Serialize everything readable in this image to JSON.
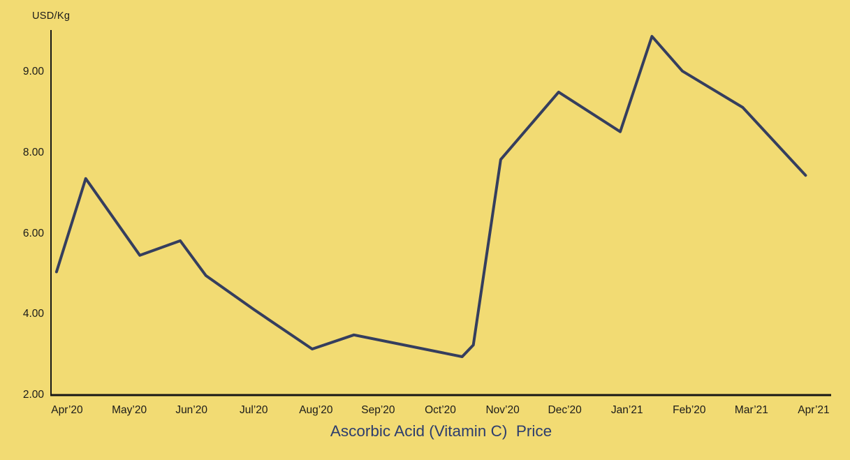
{
  "colors": {
    "background": "#F2DB73",
    "line": "#353E5E",
    "axis": "#161616",
    "tick_text": "#1A1A1A",
    "title_text": "#2C3D6E"
  },
  "chart_data": {
    "type": "line",
    "title": "Ascorbic Acid (Vitamin C)  Price",
    "ylabel": "USD/Kg",
    "xlabel": "",
    "grid": false,
    "legend": false,
    "x_tick_labels": [
      "Apr’20",
      "May’20",
      "Jun’20",
      "Jul’20",
      "Aug’20",
      "Sep’20",
      "Oct’20",
      "Nov’20",
      "Dec’20",
      "Jan’21",
      "Feb’20",
      "Mar’21",
      "Apr’21"
    ],
    "y_tick_labels": [
      "9.00",
      "8.00",
      "6.00",
      "4.00",
      "2.00"
    ],
    "y_tick_values": [
      9,
      8,
      6,
      4,
      2
    ],
    "axis_note": "y-axis ticks are equally spaced despite unequal values (non-linear scale); x unit is months where 0 = Apr'20 and 12 = Apr'21",
    "x_range_months": [
      0,
      12
    ],
    "series": [
      {
        "name": "Ascorbic Acid (Vitamin C) Price (USD/Kg)",
        "points": [
          {
            "x": -0.17,
            "y": 5.05
          },
          {
            "x": 0.3,
            "y": 7.36
          },
          {
            "x": 1.17,
            "y": 5.46
          },
          {
            "x": 1.82,
            "y": 5.82
          },
          {
            "x": 2.23,
            "y": 4.96
          },
          {
            "x": 3.0,
            "y": 4.12
          },
          {
            "x": 3.94,
            "y": 3.14
          },
          {
            "x": 4.61,
            "y": 3.49
          },
          {
            "x": 6.35,
            "y": 2.95
          },
          {
            "x": 6.53,
            "y": 3.24
          },
          {
            "x": 6.97,
            "y": 7.83
          },
          {
            "x": 7.9,
            "y": 8.75
          },
          {
            "x": 8.89,
            "y": 8.26
          },
          {
            "x": 9.4,
            "y": 9.44
          },
          {
            "x": 9.89,
            "y": 9.01
          },
          {
            "x": 10.86,
            "y": 8.56
          },
          {
            "x": 11.87,
            "y": 7.44
          }
        ]
      }
    ]
  }
}
